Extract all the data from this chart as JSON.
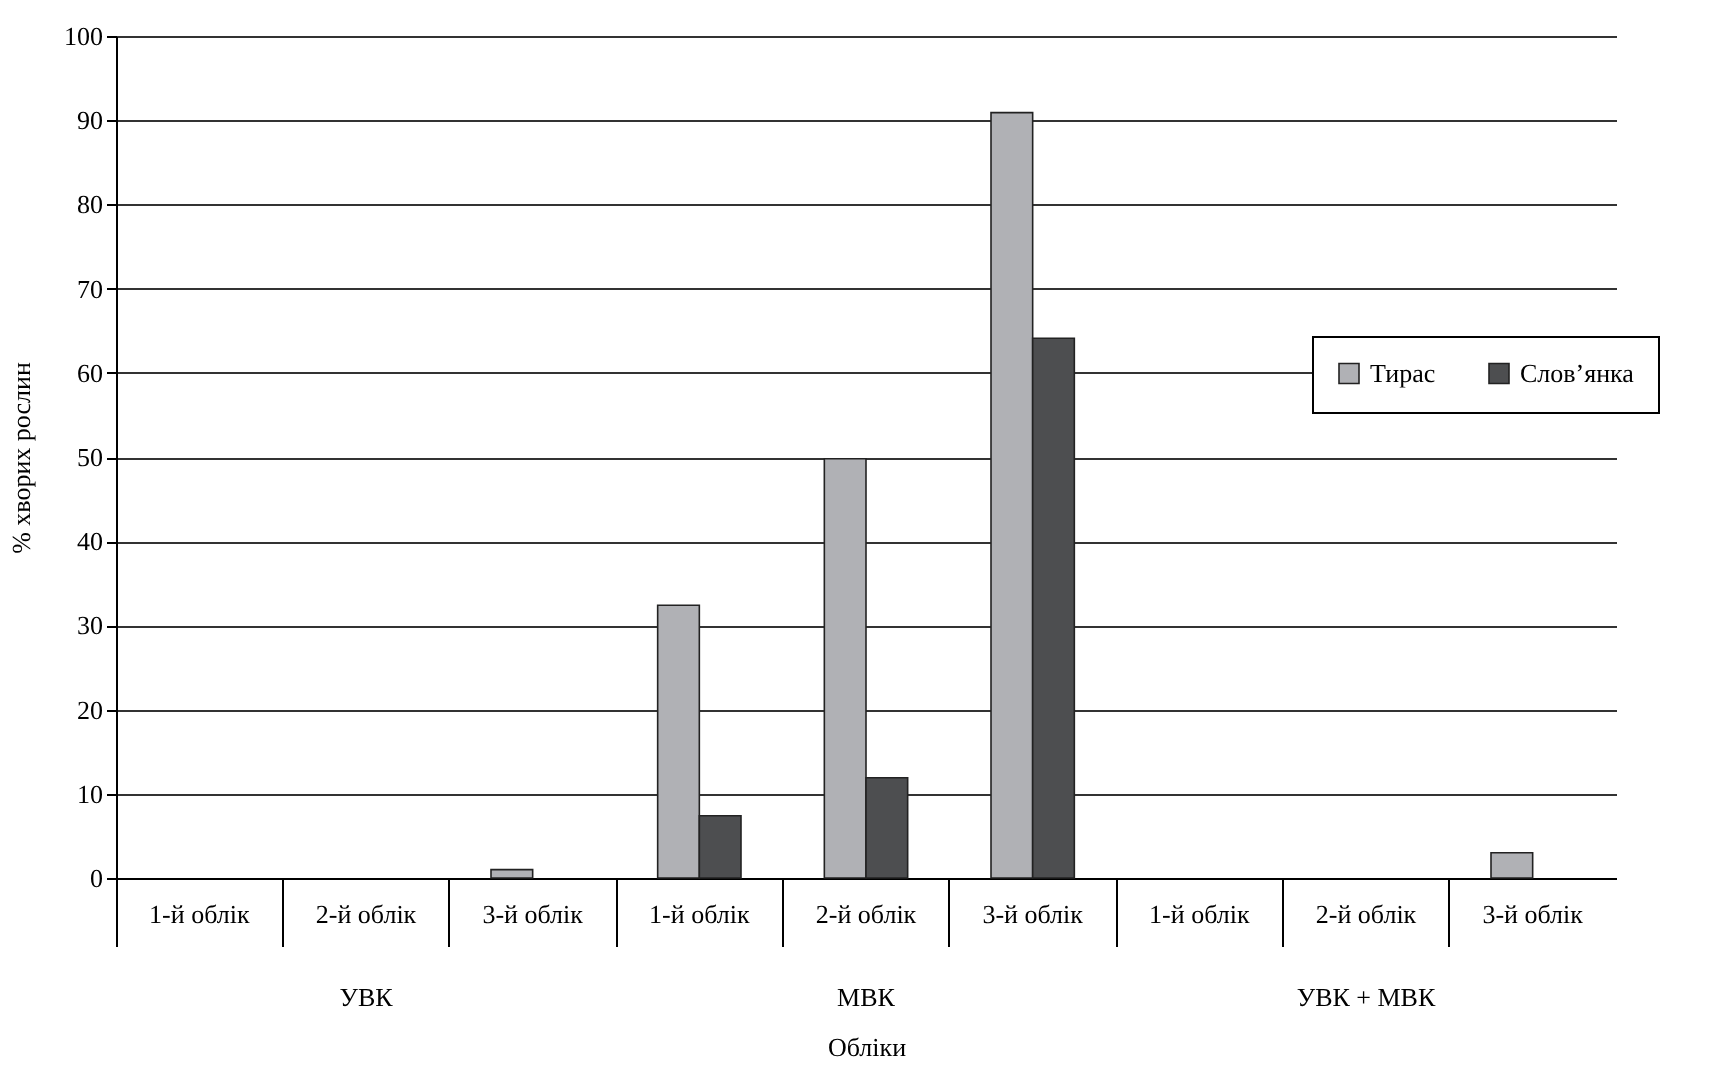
{
  "chart_data": {
    "type": "bar",
    "ylabel": "% хворих рослин",
    "xlabel": "Обліки",
    "categories": [
      "1-й облік",
      "2-й облік",
      "3-й облік",
      "1-й облік",
      "2-й облік",
      "3-й облік",
      "1-й облік",
      "2-й облік",
      "3-й облік"
    ],
    "series": [
      {
        "name": "Тирас",
        "color": "#b0b1b5",
        "values": [
          0,
          0,
          1,
          32.4,
          49.8,
          90.9,
          0,
          0,
          3
        ]
      },
      {
        "name": "Слов’янка",
        "color": "#4d4e50",
        "values": [
          0,
          0,
          0,
          7.4,
          11.9,
          64.1,
          0,
          0,
          0
        ]
      }
    ],
    "annotations": [
      "УВК",
      "МВК",
      "УВК + МВК"
    ],
    "ylim": [
      0,
      100
    ],
    "yticks": [
      0,
      10,
      20,
      30,
      40,
      50,
      60,
      70,
      80,
      90,
      100
    ],
    "grid": "y",
    "legend": "right"
  }
}
